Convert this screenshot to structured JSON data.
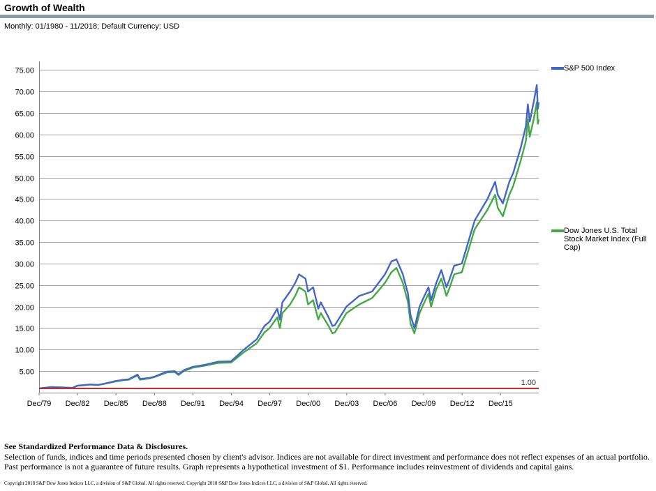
{
  "header": {
    "title": "Growth of Wealth",
    "subtitle": "Monthly: 01/1980 - 11/2018; Default Currency: USD"
  },
  "footer": {
    "disclosure_title": "See Standardized Performance Data & Disclosures.",
    "disclosure_body": "Selection of funds, indices and time periods presented chosen by client's advisor. Indices are not available for direct investment and performance does not reflect expenses of an actual portfolio. Past performance is not a guarantee of future results. Graph represents a hypothetical investment of $1. Performance includes reinvestment of dividends and capital gains.",
    "copyright": "Copyright 2018 S&P Dow Jones Indices LLC, a division of S&P Global. All rights reserved. Copyright 2018 S&P Dow Jones Indices LLC, a division of S&P Global. All rights reserved."
  },
  "chart_data": {
    "type": "line",
    "title": "Growth of Wealth",
    "xlabel": "",
    "ylabel": "",
    "ylim": [
      0,
      77
    ],
    "y_ticks": [
      5,
      10,
      15,
      20,
      25,
      30,
      35,
      40,
      45,
      50,
      55,
      60,
      65,
      70,
      75
    ],
    "y_tick_labels": [
      "5.00",
      "10.00",
      "15.00",
      "20.00",
      "25.00",
      "30.00",
      "35.00",
      "40.00",
      "45.00",
      "50.00",
      "55.00",
      "60.00",
      "65.00",
      "70.00",
      "75.00"
    ],
    "x_tick_labels": [
      "Dec/79",
      "Dec/82",
      "Dec/85",
      "Dec/88",
      "Dec/91",
      "Dec/94",
      "Dec/97",
      "Dec/00",
      "Dec/03",
      "Dec/06",
      "Dec/09",
      "Dec/12",
      "Dec/15"
    ],
    "x_tick_years": [
      1979.92,
      1982.92,
      1985.92,
      1988.92,
      1991.92,
      1994.92,
      1997.92,
      2000.92,
      2003.92,
      2006.92,
      2009.92,
      2012.92,
      2015.92
    ],
    "xlim": [
      1979.92,
      2018.9
    ],
    "grid": "horizontal",
    "baseline": {
      "value": 1.0,
      "label": "1.00",
      "color": "#a52a2a"
    },
    "legend_position": "right",
    "series": [
      {
        "name": "S&P 500 Index",
        "color": "#4466cc",
        "points": [
          [
            1980.0,
            1.0
          ],
          [
            1980.9,
            1.3
          ],
          [
            1981.8,
            1.2
          ],
          [
            1982.5,
            1.1
          ],
          [
            1982.9,
            1.6
          ],
          [
            1983.9,
            1.9
          ],
          [
            1984.5,
            1.8
          ],
          [
            1984.9,
            2.0
          ],
          [
            1985.9,
            2.7
          ],
          [
            1986.5,
            3.0
          ],
          [
            1986.9,
            3.1
          ],
          [
            1987.6,
            4.2
          ],
          [
            1987.8,
            3.2
          ],
          [
            1988.5,
            3.4
          ],
          [
            1988.9,
            3.7
          ],
          [
            1989.9,
            4.9
          ],
          [
            1990.5,
            5.0
          ],
          [
            1990.8,
            4.3
          ],
          [
            1991.2,
            5.2
          ],
          [
            1991.9,
            6.0
          ],
          [
            1992.9,
            6.5
          ],
          [
            1993.9,
            7.2
          ],
          [
            1994.9,
            7.3
          ],
          [
            1995.9,
            10.0
          ],
          [
            1996.9,
            12.4
          ],
          [
            1997.5,
            15.5
          ],
          [
            1997.9,
            16.5
          ],
          [
            1998.5,
            19.5
          ],
          [
            1998.7,
            17.0
          ],
          [
            1998.9,
            21.0
          ],
          [
            1999.5,
            23.5
          ],
          [
            1999.9,
            25.5
          ],
          [
            2000.2,
            27.5
          ],
          [
            2000.7,
            26.5
          ],
          [
            2000.9,
            23.5
          ],
          [
            2001.3,
            24.5
          ],
          [
            2001.7,
            19.5
          ],
          [
            2001.9,
            21.0
          ],
          [
            2002.5,
            17.5
          ],
          [
            2002.8,
            15.5
          ],
          [
            2003.0,
            15.7
          ],
          [
            2003.9,
            20.0
          ],
          [
            2004.9,
            22.5
          ],
          [
            2005.9,
            23.5
          ],
          [
            2006.9,
            27.5
          ],
          [
            2007.4,
            30.5
          ],
          [
            2007.8,
            31.0
          ],
          [
            2008.3,
            27.5
          ],
          [
            2008.7,
            23.0
          ],
          [
            2008.9,
            18.0
          ],
          [
            2009.2,
            15.0
          ],
          [
            2009.6,
            20.0
          ],
          [
            2009.9,
            22.0
          ],
          [
            2010.3,
            24.5
          ],
          [
            2010.5,
            21.5
          ],
          [
            2010.9,
            25.5
          ],
          [
            2011.3,
            28.5
          ],
          [
            2011.7,
            24.5
          ],
          [
            2011.9,
            26.0
          ],
          [
            2012.3,
            29.5
          ],
          [
            2012.9,
            30.0
          ],
          [
            2013.5,
            36.0
          ],
          [
            2013.9,
            40.0
          ],
          [
            2014.9,
            45.0
          ],
          [
            2015.5,
            49.0
          ],
          [
            2015.7,
            46.0
          ],
          [
            2016.1,
            44.0
          ],
          [
            2016.6,
            49.0
          ],
          [
            2016.9,
            51.0
          ],
          [
            2017.5,
            57.0
          ],
          [
            2017.9,
            62.0
          ],
          [
            2018.05,
            67.0
          ],
          [
            2018.2,
            63.0
          ],
          [
            2018.5,
            67.5
          ],
          [
            2018.75,
            71.5
          ],
          [
            2018.83,
            66.0
          ],
          [
            2018.9,
            67.5
          ]
        ]
      },
      {
        "name": "Dow Jones U.S. Total Stock Market Index (Full Cap)",
        "color": "#44aa44",
        "points": [
          [
            1980.0,
            1.0
          ],
          [
            1980.9,
            1.3
          ],
          [
            1981.8,
            1.2
          ],
          [
            1982.5,
            1.1
          ],
          [
            1982.9,
            1.6
          ],
          [
            1983.9,
            1.9
          ],
          [
            1984.5,
            1.8
          ],
          [
            1984.9,
            2.0
          ],
          [
            1985.9,
            2.6
          ],
          [
            1986.5,
            2.9
          ],
          [
            1986.9,
            3.0
          ],
          [
            1987.6,
            4.0
          ],
          [
            1987.8,
            3.0
          ],
          [
            1988.5,
            3.3
          ],
          [
            1988.9,
            3.6
          ],
          [
            1989.9,
            4.7
          ],
          [
            1990.5,
            4.8
          ],
          [
            1990.8,
            4.1
          ],
          [
            1991.2,
            5.0
          ],
          [
            1991.9,
            5.8
          ],
          [
            1992.9,
            6.3
          ],
          [
            1993.9,
            6.9
          ],
          [
            1994.9,
            7.0
          ],
          [
            1995.9,
            9.4
          ],
          [
            1996.9,
            11.5
          ],
          [
            1997.5,
            14.0
          ],
          [
            1997.9,
            15.0
          ],
          [
            1998.5,
            17.5
          ],
          [
            1998.7,
            15.0
          ],
          [
            1998.9,
            18.5
          ],
          [
            1999.5,
            20.5
          ],
          [
            1999.9,
            22.5
          ],
          [
            2000.2,
            24.5
          ],
          [
            2000.7,
            23.5
          ],
          [
            2000.9,
            20.5
          ],
          [
            2001.3,
            21.5
          ],
          [
            2001.7,
            17.0
          ],
          [
            2001.9,
            18.5
          ],
          [
            2002.5,
            15.5
          ],
          [
            2002.8,
            13.8
          ],
          [
            2003.0,
            14.0
          ],
          [
            2003.9,
            18.5
          ],
          [
            2004.9,
            20.5
          ],
          [
            2005.9,
            22.0
          ],
          [
            2006.9,
            25.5
          ],
          [
            2007.4,
            28.0
          ],
          [
            2007.8,
            29.0
          ],
          [
            2008.3,
            25.5
          ],
          [
            2008.7,
            21.0
          ],
          [
            2008.9,
            16.0
          ],
          [
            2009.2,
            13.8
          ],
          [
            2009.6,
            18.5
          ],
          [
            2009.9,
            20.5
          ],
          [
            2010.3,
            23.0
          ],
          [
            2010.5,
            20.0
          ],
          [
            2010.9,
            24.0
          ],
          [
            2011.3,
            26.5
          ],
          [
            2011.7,
            22.5
          ],
          [
            2011.9,
            24.0
          ],
          [
            2012.3,
            27.5
          ],
          [
            2012.9,
            28.0
          ],
          [
            2013.5,
            34.0
          ],
          [
            2013.9,
            38.0
          ],
          [
            2014.9,
            42.5
          ],
          [
            2015.5,
            46.0
          ],
          [
            2015.7,
            43.0
          ],
          [
            2016.1,
            41.0
          ],
          [
            2016.6,
            46.0
          ],
          [
            2016.9,
            48.0
          ],
          [
            2017.5,
            54.0
          ],
          [
            2017.9,
            58.5
          ],
          [
            2018.05,
            63.5
          ],
          [
            2018.2,
            59.5
          ],
          [
            2018.5,
            63.5
          ],
          [
            2018.75,
            67.5
          ],
          [
            2018.83,
            62.5
          ],
          [
            2018.9,
            63.5
          ]
        ]
      }
    ]
  }
}
